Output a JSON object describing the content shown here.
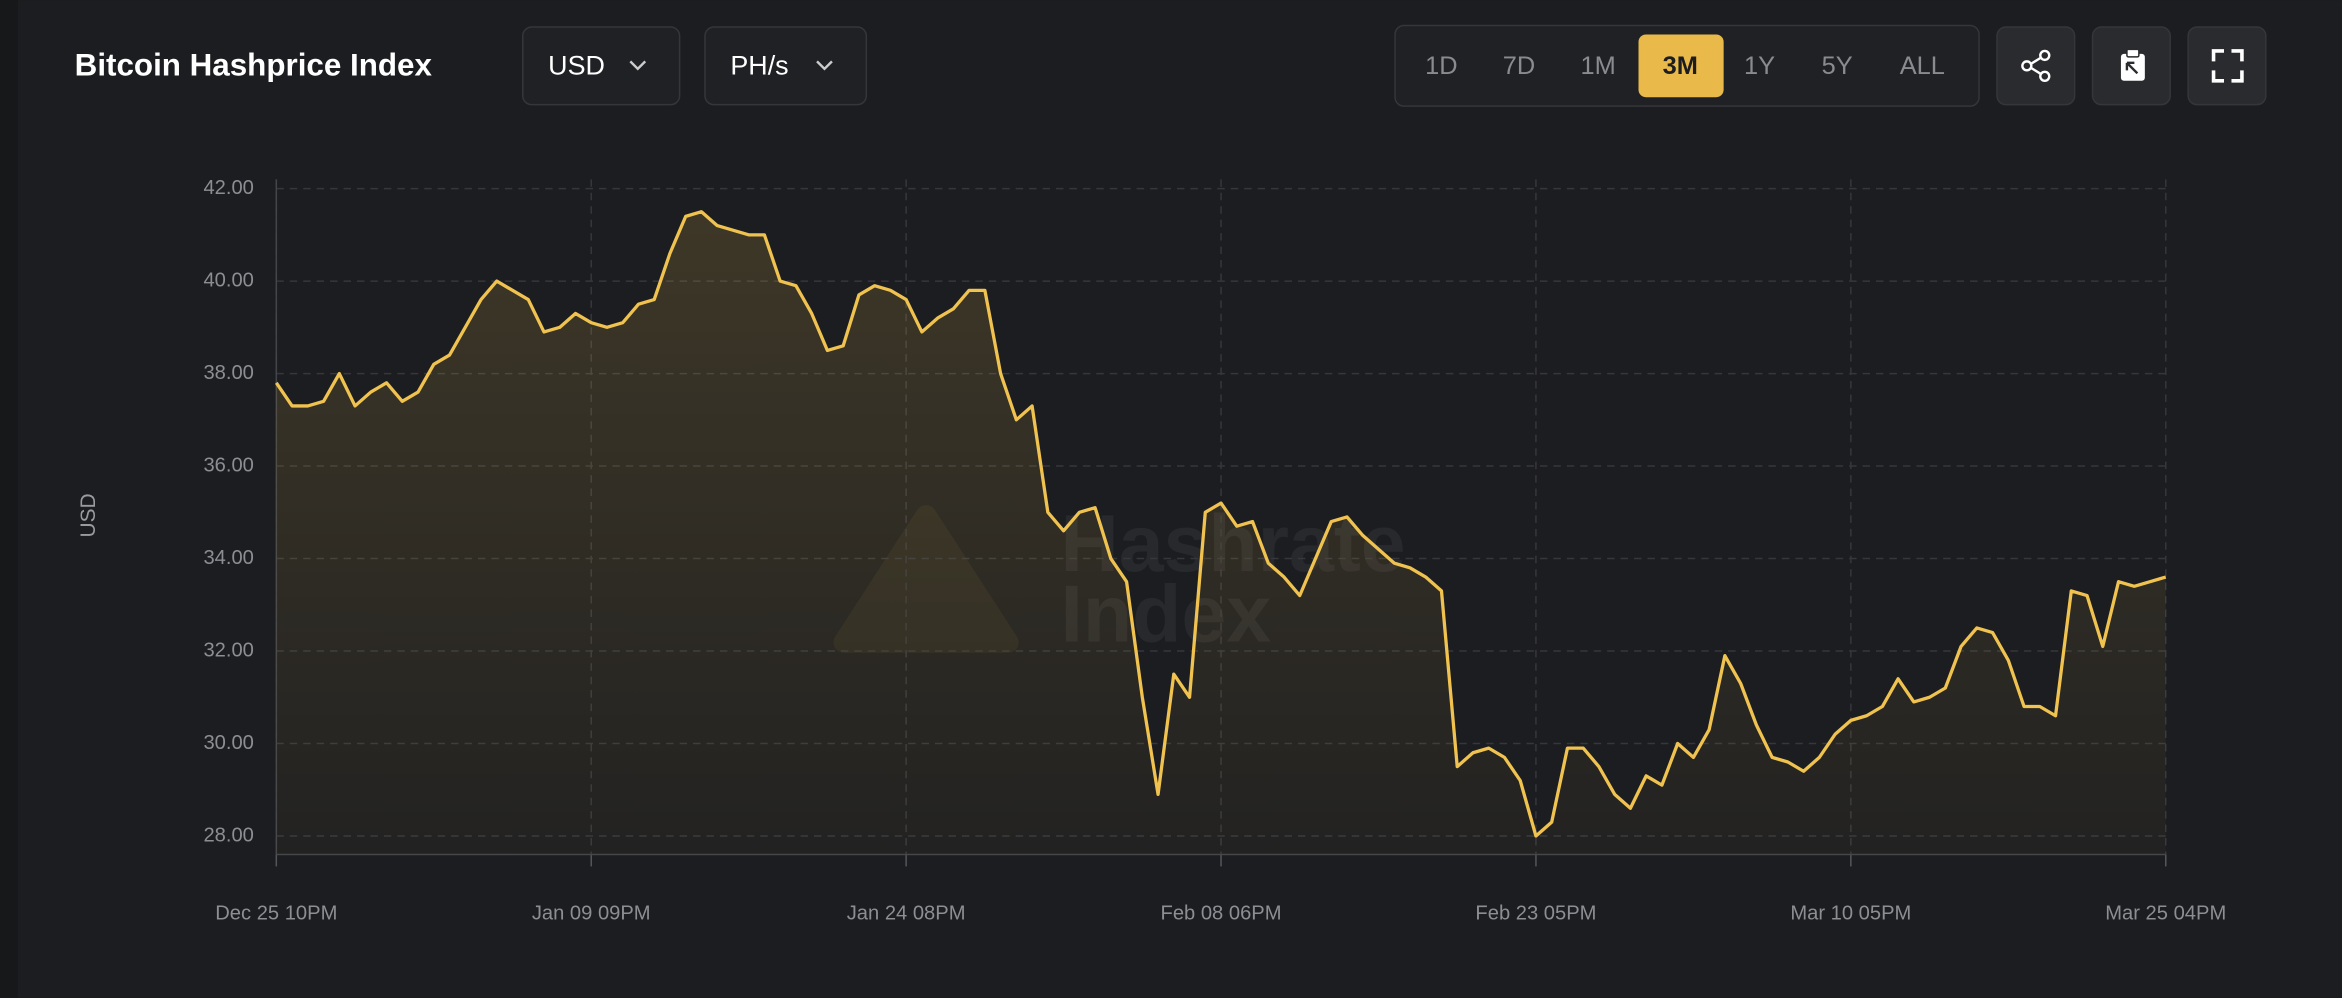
{
  "header": {
    "title": "Bitcoin Hashprice Index"
  },
  "controls": {
    "currency": "USD",
    "unit": "PH/s",
    "ranges": [
      "1D",
      "7D",
      "1M",
      "3M",
      "1Y",
      "5Y",
      "ALL"
    ],
    "active_range": 3
  },
  "watermark": [
    "Hashrate",
    "Index"
  ],
  "chart_data": {
    "type": "line",
    "y_label": "USD",
    "color": "#f0c24f",
    "grid": true,
    "ylim": [
      27.6,
      42.2
    ],
    "yticks": [
      {
        "value": 28,
        "label": "28.00"
      },
      {
        "value": 30,
        "label": "30.00"
      },
      {
        "value": 32,
        "label": "32.00"
      },
      {
        "value": 34,
        "label": "34.00"
      },
      {
        "value": 36,
        "label": "36.00"
      },
      {
        "value": 38,
        "label": "38.00"
      },
      {
        "value": 40,
        "label": "40.00"
      },
      {
        "value": 42,
        "label": "42.00"
      }
    ],
    "categories": [
      "Dec 25 10PM",
      null,
      null,
      null,
      null,
      null,
      null,
      null,
      null,
      null,
      null,
      null,
      null,
      null,
      null,
      null,
      null,
      null,
      null,
      null,
      "Jan 09 09PM",
      null,
      null,
      null,
      null,
      null,
      null,
      null,
      null,
      null,
      null,
      null,
      null,
      null,
      null,
      null,
      null,
      null,
      null,
      null,
      "Jan 24 08PM",
      null,
      null,
      null,
      null,
      null,
      null,
      null,
      null,
      null,
      null,
      null,
      null,
      null,
      null,
      null,
      null,
      null,
      null,
      null,
      "Feb 08 06PM",
      null,
      null,
      null,
      null,
      null,
      null,
      null,
      null,
      null,
      null,
      null,
      null,
      null,
      null,
      null,
      null,
      null,
      null,
      null,
      "Feb 23 05PM",
      null,
      null,
      null,
      null,
      null,
      null,
      null,
      null,
      null,
      null,
      null,
      null,
      null,
      null,
      null,
      null,
      null,
      null,
      null,
      "Mar 10 05PM",
      null,
      null,
      null,
      null,
      null,
      null,
      null,
      null,
      null,
      null,
      null,
      null,
      null,
      null,
      null,
      null,
      null,
      null,
      null,
      "Mar 25 04PM"
    ],
    "values": [
      37.8,
      37.3,
      37.3,
      37.4,
      38.0,
      37.3,
      37.6,
      37.8,
      37.4,
      37.6,
      38.2,
      38.4,
      39.0,
      39.6,
      40.0,
      39.8,
      39.6,
      38.9,
      39.0,
      39.3,
      39.1,
      39.0,
      39.1,
      39.5,
      39.6,
      40.6,
      41.4,
      41.5,
      41.2,
      41.1,
      41.0,
      41.0,
      40.0,
      39.9,
      39.3,
      38.5,
      38.6,
      39.7,
      39.9,
      39.8,
      39.6,
      38.9,
      39.2,
      39.4,
      39.8,
      39.8,
      38.0,
      37.0,
      37.3,
      35.0,
      34.6,
      35.0,
      35.1,
      34.0,
      33.5,
      31.0,
      28.9,
      31.5,
      31.0,
      35.0,
      35.2,
      34.7,
      34.8,
      33.9,
      33.6,
      33.2,
      34.0,
      34.8,
      34.9,
      34.5,
      34.2,
      33.9,
      33.8,
      33.6,
      33.3,
      29.5,
      29.8,
      29.9,
      29.7,
      29.2,
      28.0,
      28.3,
      29.9,
      29.9,
      29.5,
      28.9,
      28.6,
      29.3,
      29.1,
      30.0,
      29.7,
      30.3,
      31.9,
      31.3,
      30.4,
      29.7,
      29.6,
      29.4,
      29.7,
      30.2,
      30.5,
      30.6,
      30.8,
      31.4,
      30.9,
      31.0,
      31.2,
      32.1,
      32.5,
      32.4,
      31.8,
      30.8,
      30.8,
      30.6,
      33.3,
      33.2,
      32.1,
      33.5,
      33.4,
      33.5,
      33.6
    ]
  }
}
